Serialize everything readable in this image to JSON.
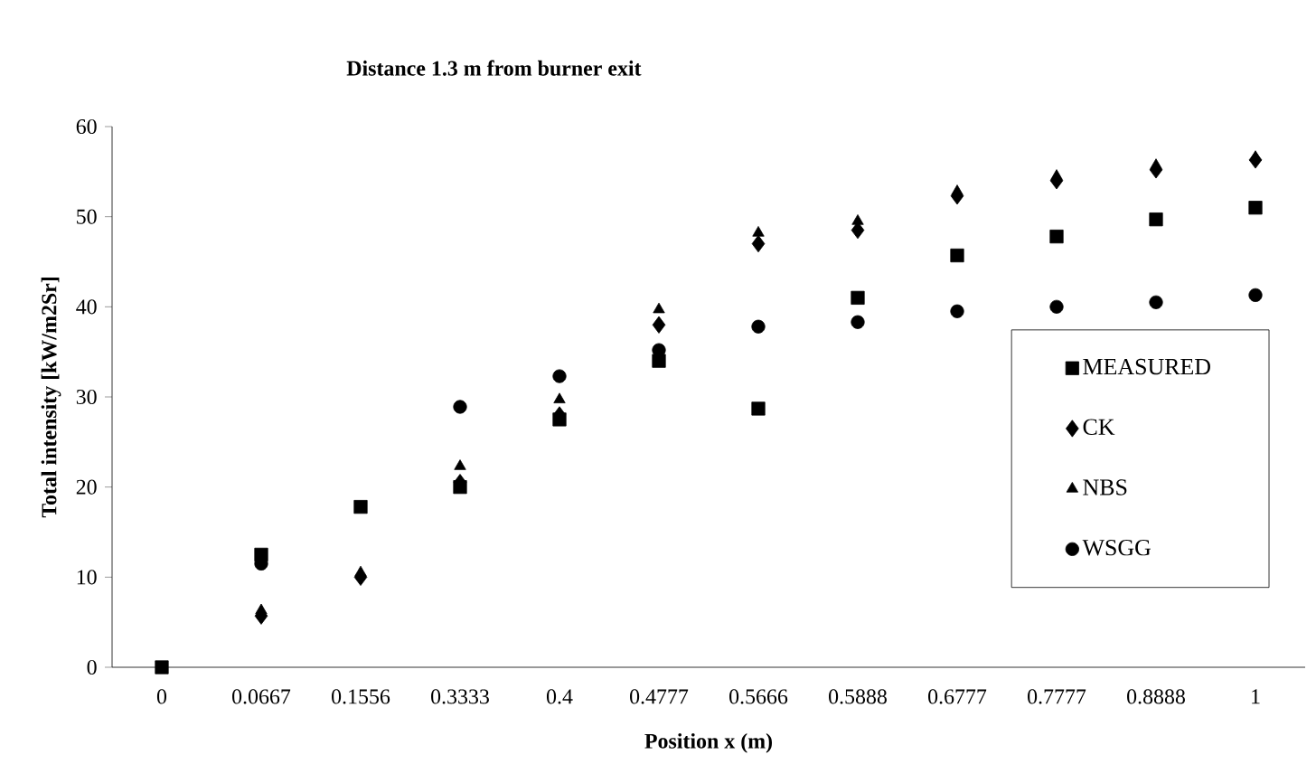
{
  "chart_data": {
    "type": "scatter",
    "title": "Distance 1.3 m from burner exit",
    "xlabel": "Position x (m)",
    "ylabel": "Total intensity [kW/m2Sr]",
    "categories": [
      "0",
      "0.0667",
      "0.1556",
      "0.3333",
      "0.4",
      "0.4777",
      "0.5666",
      "0.5888",
      "0.6777",
      "0.7777",
      "0.8888",
      "1"
    ],
    "ylim": [
      0,
      60
    ],
    "yticks": [
      0,
      10,
      20,
      30,
      40,
      50,
      60
    ],
    "grid": false,
    "legend": "right",
    "series": [
      {
        "name": "MEASURED",
        "color": "#000000",
        "marker": "square",
        "values": [
          0,
          12.5,
          17.8,
          20,
          27.5,
          34,
          28.7,
          41,
          45.7,
          47.8,
          49.7,
          51
        ]
      },
      {
        "name": "CK",
        "color": "#000000",
        "marker": "diamond",
        "values": [
          null,
          5.7,
          10,
          20.5,
          28,
          38,
          47,
          48.5,
          52.3,
          54,
          55.2,
          56.3
        ]
      },
      {
        "name": "NBS",
        "color": "#000000",
        "marker": "triangle",
        "values": [
          null,
          6.3,
          10.5,
          22.3,
          29.7,
          39.7,
          48.2,
          49.5,
          52.8,
          54.5,
          55.7,
          56.6
        ]
      },
      {
        "name": "WSGG",
        "color": "#000000",
        "marker": "circle",
        "values": [
          null,
          11.5,
          null,
          28.9,
          32.3,
          35.2,
          37.8,
          38.3,
          39.5,
          40,
          40.5,
          41.3
        ]
      }
    ]
  }
}
